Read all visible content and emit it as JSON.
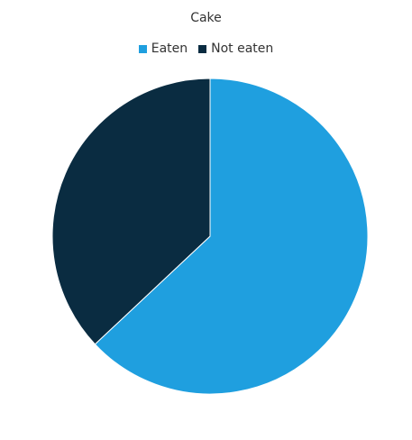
{
  "chart_data": {
    "type": "pie",
    "title": "Cake",
    "legend_position": "top",
    "slices": [
      {
        "name": "Eaten",
        "value": 63,
        "color": "#1f9fdf"
      },
      {
        "name": "Not eaten",
        "value": 37,
        "color": "#0a2c41"
      }
    ]
  }
}
